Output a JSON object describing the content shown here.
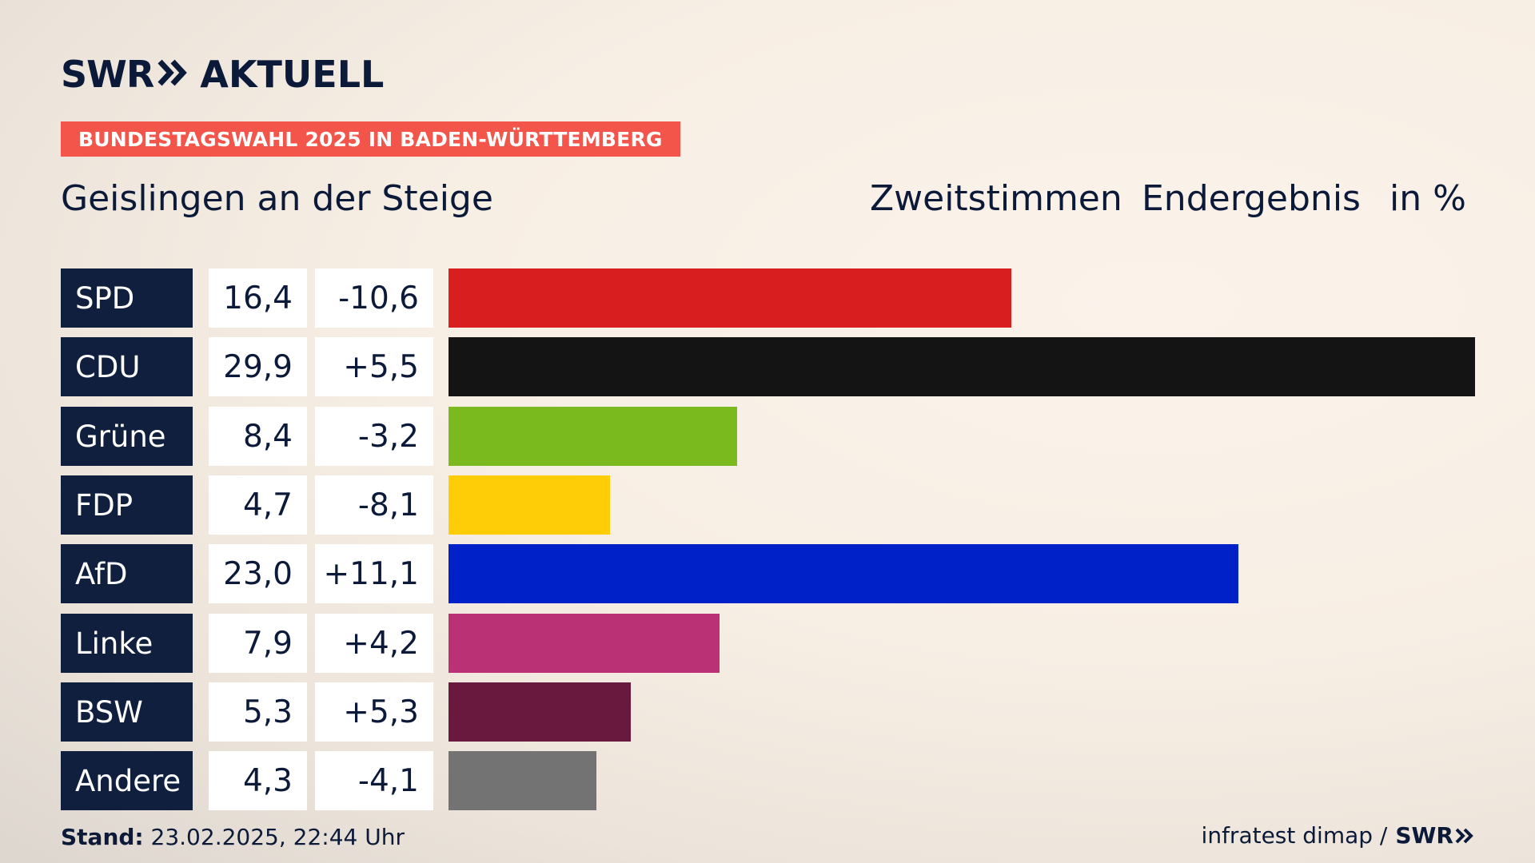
{
  "brand": {
    "swr": "SWR",
    "aktuell": "AKTUELL"
  },
  "tag": "BUNDESTAGSWAHL 2025 IN BADEN-WÜRTTEMBERG",
  "region": "Geislingen an der Steige",
  "header": {
    "vote_type": "Zweitstimmen",
    "status": "Endergebnis",
    "unit": "in %"
  },
  "chart_data": {
    "type": "bar",
    "orientation": "horizontal",
    "title": "Geislingen an der Steige",
    "unit": "%",
    "categories": [
      "SPD",
      "CDU",
      "Grüne",
      "FDP",
      "AfD",
      "Linke",
      "BSW",
      "Andere"
    ],
    "values": [
      16.4,
      29.9,
      8.4,
      4.7,
      23.0,
      7.9,
      5.3,
      4.3
    ],
    "values_label": [
      "16,4",
      "29,9",
      "8,4",
      "4,7",
      "23,0",
      "7,9",
      "5,3",
      "4,3"
    ],
    "changes_label": [
      "-10,6",
      "+5,5",
      "-3,2",
      "-8,1",
      "+11,1",
      "+4,2",
      "+5,3",
      "-4,1"
    ],
    "changes": [
      -10.6,
      5.5,
      -3.2,
      -8.1,
      11.1,
      4.2,
      5.3,
      -4.1
    ],
    "colors": [
      "#d81e1e",
      "#141414",
      "#7aba1f",
      "#ffcc08",
      "#0021c8",
      "#bb3176",
      "#69183e",
      "#737373"
    ],
    "xlim": [
      0,
      29.9
    ]
  },
  "footer": {
    "stand_label": "Stand:",
    "stand_value": "23.02.2025, 22:44 Uhr",
    "source": "infratest dimap /",
    "source_brand": "SWR"
  }
}
